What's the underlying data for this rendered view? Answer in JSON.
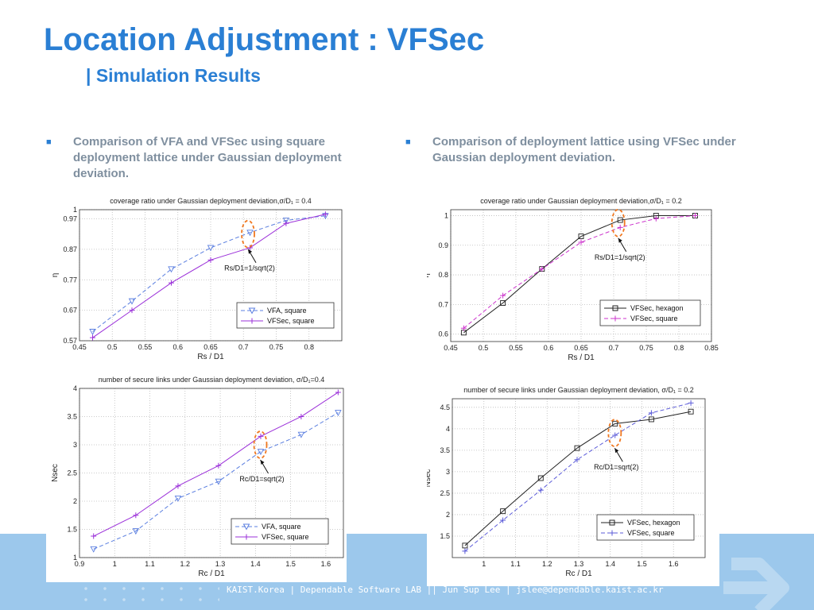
{
  "slide": {
    "title": "Location Adjustment : VFSec",
    "subtitle": "| Simulation Results",
    "bullet_left": "Comparison of VFA and VFSec using square deployment lattice under Gaussian deployment deviation.",
    "bullet_right": "Comparison of deployment lattice using VFSec under Gaussian deployment deviation.",
    "footer": "KAIST.Korea | Dependable Software LAB || Jun Sup Lee | jslee@dependable.kaist.ac.kr",
    "accent_color": "#2a7fd4",
    "band_color": "#9cc8ec"
  },
  "chart_data": [
    {
      "type": "line",
      "title": "coverage ratio under Gaussian deployment deviation,σ/D₁ = 0.4",
      "xlabel": "Rs / D1",
      "ylabel": "η",
      "xlim": [
        0.45,
        0.85
      ],
      "ylim": [
        0.57,
        1.0
      ],
      "xticks": [
        0.45,
        0.5,
        0.55,
        0.6,
        0.65,
        0.7,
        0.75,
        0.8
      ],
      "xtick_labels": [
        "0.45",
        "0.5",
        "0.55",
        "0.6",
        "0.65",
        "0.7",
        "0.75",
        "0.8"
      ],
      "yticks": [
        0.57,
        0.67,
        0.77,
        0.87,
        0.97,
        1.0
      ],
      "ytick_labels": [
        "0.57",
        "0.67",
        "0.77",
        "0.87",
        "0.97",
        "1"
      ],
      "grid": true,
      "legend_position": "bottom-right",
      "annotation": {
        "text": "Rs/D1=1/sqrt(2)",
        "x": 0.707,
        "y": 0.92
      },
      "series": [
        {
          "name": "VFA, square",
          "color": "#5b7fe0",
          "dash": true,
          "marker": "triangle",
          "x": [
            0.47,
            0.53,
            0.59,
            0.65,
            0.71,
            0.765,
            0.825
          ],
          "y": [
            0.6,
            0.7,
            0.805,
            0.875,
            0.925,
            0.965,
            0.98
          ]
        },
        {
          "name": "VFSec, square",
          "color": "#9b30d9",
          "dash": false,
          "marker": "plus",
          "x": [
            0.47,
            0.53,
            0.59,
            0.65,
            0.71,
            0.765,
            0.825
          ],
          "y": [
            0.58,
            0.67,
            0.76,
            0.835,
            0.875,
            0.955,
            0.985
          ]
        }
      ]
    },
    {
      "type": "line",
      "title": "coverage ratio under Gaussian deployment deviation,σ/D₁ = 0.2",
      "xlabel": "Rs / D1",
      "ylabel": "η",
      "xlim": [
        0.45,
        0.85
      ],
      "ylim": [
        0.575,
        1.02
      ],
      "xticks": [
        0.45,
        0.5,
        0.55,
        0.6,
        0.65,
        0.7,
        0.75,
        0.8,
        0.85
      ],
      "xtick_labels": [
        "0.45",
        "0.5",
        "0.55",
        "0.6",
        "0.65",
        "0.7",
        "0.75",
        "0.8",
        "0.85"
      ],
      "yticks": [
        0.6,
        0.7,
        0.8,
        0.9,
        1.0
      ],
      "ytick_labels": [
        "0.6",
        "0.7",
        "0.8",
        "0.9",
        "1"
      ],
      "grid": true,
      "legend_position": "bottom-right",
      "annotation": {
        "text": "Rs/D1=1/sqrt(2)",
        "x": 0.707,
        "y": 0.975
      },
      "series": [
        {
          "name": "VFSec, hexagon",
          "color": "#222222",
          "dash": false,
          "marker": "square",
          "x": [
            0.47,
            0.53,
            0.59,
            0.65,
            0.71,
            0.765,
            0.825
          ],
          "y": [
            0.605,
            0.705,
            0.82,
            0.93,
            0.985,
            1.0,
            1.0
          ]
        },
        {
          "name": "VFSec, square",
          "color": "#cc33cc",
          "dash": true,
          "marker": "plus",
          "x": [
            0.47,
            0.53,
            0.59,
            0.65,
            0.71,
            0.765,
            0.825
          ],
          "y": [
            0.62,
            0.73,
            0.82,
            0.91,
            0.96,
            0.99,
            1.0
          ]
        }
      ]
    },
    {
      "type": "line",
      "title": "number of secure links under Gaussian deployment deviation, σ/D₁=0.4",
      "xlabel": "Rc / D1",
      "ylabel": "Nsec",
      "xlim": [
        0.9,
        1.65
      ],
      "ylim": [
        1.0,
        4.0
      ],
      "xticks": [
        0.9,
        1.0,
        1.1,
        1.2,
        1.3,
        1.4,
        1.5,
        1.6
      ],
      "xtick_labels": [
        "0.9",
        "1",
        "1.1",
        "1.2",
        "1.3",
        "1.4",
        "1.5",
        "1.6"
      ],
      "yticks": [
        1.0,
        1.5,
        2.0,
        2.5,
        3.0,
        3.5,
        4.0
      ],
      "ytick_labels": [
        "1",
        "1.5",
        "2",
        "2.5",
        "3",
        "3.5",
        "4"
      ],
      "grid": true,
      "legend_position": "bottom-right",
      "annotation": {
        "text": "Rc/D1=sqrt(2)",
        "x": 1.414,
        "y": 3.0
      },
      "series": [
        {
          "name": "VFA, square",
          "color": "#5b7fe0",
          "dash": true,
          "marker": "triangle",
          "x": [
            0.94,
            1.06,
            1.18,
            1.295,
            1.415,
            1.53,
            1.635
          ],
          "y": [
            1.15,
            1.47,
            2.05,
            2.35,
            2.88,
            3.18,
            3.57
          ]
        },
        {
          "name": "VFSec, square",
          "color": "#9b30d9",
          "dash": false,
          "marker": "plus",
          "x": [
            0.94,
            1.06,
            1.18,
            1.295,
            1.415,
            1.53,
            1.635
          ],
          "y": [
            1.38,
            1.75,
            2.27,
            2.63,
            3.15,
            3.5,
            3.93
          ]
        }
      ]
    },
    {
      "type": "line",
      "title": "number of secure links under Gaussian deployment deviation, σ/D₁ = 0.2",
      "xlabel": "Rc / D1",
      "ylabel": "Nsec",
      "xlim": [
        0.9,
        1.7
      ],
      "ylim": [
        1.0,
        4.7
      ],
      "xticks": [
        1.0,
        1.1,
        1.2,
        1.3,
        1.4,
        1.5,
        1.6
      ],
      "xtick_labels": [
        "1",
        "1.1",
        "1.2",
        "1.3",
        "1.4",
        "1.5",
        "1.6"
      ],
      "yticks": [
        1.5,
        2.0,
        2.5,
        3.0,
        3.5,
        4.0,
        4.5
      ],
      "ytick_labels": [
        "1.5",
        "2",
        "2.5",
        "3",
        "3.5",
        "4",
        "4.5"
      ],
      "grid": true,
      "legend_position": "bottom-right",
      "annotation": {
        "text": "Rc/D1=sqrt(2)",
        "x": 1.414,
        "y": 3.9
      },
      "series": [
        {
          "name": "VFSec, hexagon",
          "color": "#222222",
          "dash": false,
          "marker": "square",
          "x": [
            0.94,
            1.06,
            1.18,
            1.295,
            1.415,
            1.53,
            1.655
          ],
          "y": [
            1.28,
            2.08,
            2.85,
            3.55,
            4.12,
            4.22,
            4.4
          ]
        },
        {
          "name": "VFSec, square",
          "color": "#5b5bd9",
          "dash": true,
          "marker": "plus",
          "x": [
            0.94,
            1.06,
            1.18,
            1.295,
            1.415,
            1.53,
            1.655
          ],
          "y": [
            1.15,
            1.87,
            2.57,
            3.28,
            3.85,
            4.37,
            4.6
          ]
        }
      ]
    }
  ]
}
